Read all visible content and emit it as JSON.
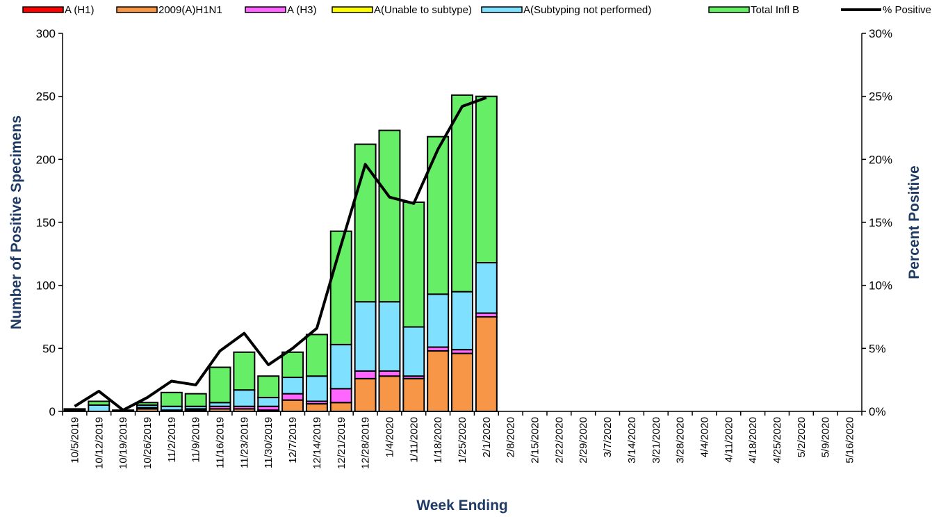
{
  "chart_data": {
    "type": "bar",
    "x_label": "Week Ending",
    "y_label": "Number of  Positive Specimens",
    "y2_label": "Percent  Positive",
    "stacked": true,
    "categories": [
      "10/5/2019",
      "10/12/2019",
      "10/19/2019",
      "10/26/2019",
      "11/2/2019",
      "11/9/2019",
      "11/16/2019",
      "11/23/2019",
      "11/30/2019",
      "12/7/2019",
      "12/14/2019",
      "12/21/2019",
      "12/28/2019",
      "1/4/2020",
      "1/11/2020",
      "1/18/2020",
      "1/25/2020",
      "2/1/2020",
      "2/8/2020",
      "2/15/2020",
      "2/22/2020",
      "2/29/2020",
      "3/7/2020",
      "3/14/2020",
      "3/21/2020",
      "3/28/2020",
      "4/4/2020",
      "4/11/2020",
      "4/18/2020",
      "4/25/2020",
      "5/2/2020",
      "5/9/2020",
      "5/16/2020"
    ],
    "series": [
      {
        "name": "A (H1)",
        "color": "#ff0000",
        "values": [
          0,
          0,
          0,
          0,
          0,
          0,
          0,
          0,
          0,
          0,
          0,
          0,
          0,
          0,
          0,
          0,
          0,
          0,
          null,
          null,
          null,
          null,
          null,
          null,
          null,
          null,
          null,
          null,
          null,
          null,
          null,
          null,
          null
        ]
      },
      {
        "name": "2009(A)H1N1",
        "color": "#f79646",
        "values": [
          0,
          0,
          0,
          2,
          1,
          1,
          2,
          2,
          1,
          9,
          6,
          7,
          26,
          28,
          26,
          48,
          46,
          75,
          null,
          null,
          null,
          null,
          null,
          null,
          null,
          null,
          null,
          null,
          null,
          null,
          null,
          null,
          null
        ]
      },
      {
        "name": "A (H3)",
        "color": "#ff66ff",
        "values": [
          0,
          0,
          0,
          1,
          0,
          1,
          2,
          2,
          3,
          5,
          2,
          11,
          6,
          4,
          2,
          3,
          3,
          3,
          null,
          null,
          null,
          null,
          null,
          null,
          null,
          null,
          null,
          null,
          null,
          null,
          null,
          null,
          null
        ]
      },
      {
        "name": "A(Unable to subtype)",
        "color": "#ffff00",
        "values": [
          0,
          0,
          0,
          0,
          0,
          0,
          0,
          0,
          0,
          0,
          0,
          0,
          0,
          0,
          0,
          0,
          0,
          0,
          null,
          null,
          null,
          null,
          null,
          null,
          null,
          null,
          null,
          null,
          null,
          null,
          null,
          null,
          null
        ]
      },
      {
        "name": "A(Subtyping not performed)",
        "color": "#7fe0ff",
        "values": [
          1,
          5,
          1,
          2,
          3,
          2,
          3,
          13,
          7,
          13,
          20,
          35,
          55,
          55,
          39,
          42,
          46,
          40,
          null,
          null,
          null,
          null,
          null,
          null,
          null,
          null,
          null,
          null,
          null,
          null,
          null,
          null,
          null
        ]
      },
      {
        "name": "Total Infl B",
        "color": "#66ee66",
        "values": [
          1,
          3,
          0,
          2,
          11,
          10,
          28,
          30,
          17,
          20,
          33,
          90,
          125,
          136,
          99,
          125,
          156,
          132,
          null,
          null,
          null,
          null,
          null,
          null,
          null,
          null,
          null,
          null,
          null,
          null,
          null,
          null,
          null
        ]
      },
      {
        "name": "% Positive",
        "color": "#000000",
        "type": "line",
        "axis": "y2",
        "values": [
          0.4,
          1.6,
          0.1,
          1.1,
          2.4,
          2.1,
          4.8,
          6.2,
          3.7,
          5.0,
          6.6,
          13.2,
          19.6,
          17.0,
          16.5,
          20.8,
          24.2,
          24.9,
          null,
          null,
          null,
          null,
          null,
          null,
          null,
          null,
          null,
          null,
          null,
          null,
          null,
          null,
          null
        ]
      }
    ],
    "ylim": [
      0,
      300
    ],
    "yticks": [
      0,
      50,
      100,
      150,
      200,
      250,
      300
    ],
    "y2lim": [
      0,
      30
    ],
    "y2ticks": [
      {
        "value": 0,
        "label": "0%"
      },
      {
        "value": 5,
        "label": "5%"
      },
      {
        "value": 10,
        "label": "10%"
      },
      {
        "value": 15,
        "label": "15%"
      },
      {
        "value": 20,
        "label": "20%"
      },
      {
        "value": 25,
        "label": "25%"
      },
      {
        "value": 30,
        "label": "30%"
      }
    ],
    "legend": "top",
    "grid": false
  }
}
